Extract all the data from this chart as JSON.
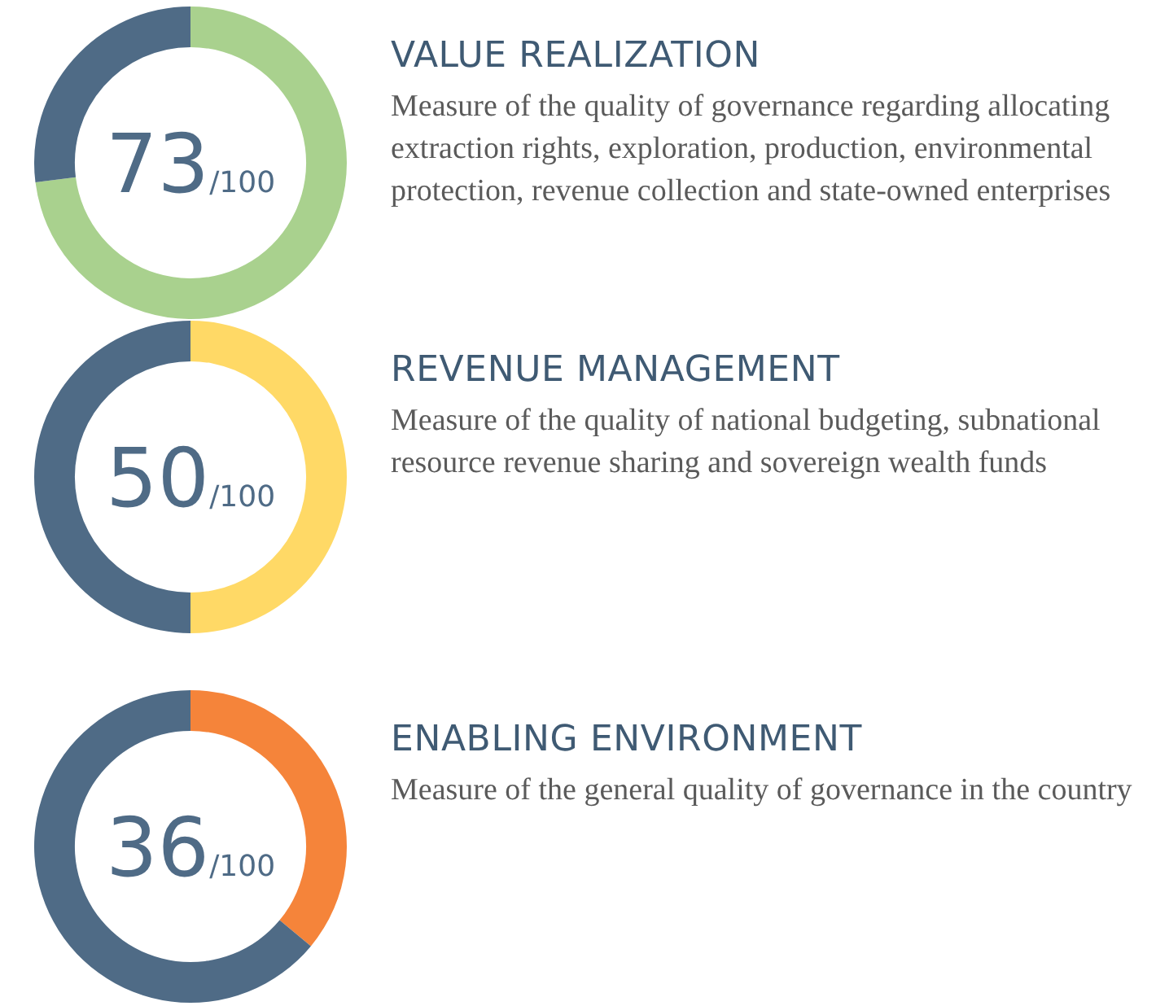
{
  "chart_data": [
    {
      "type": "donut",
      "title": "VALUE REALIZATION",
      "subtitle": "Measure of the quality of governance regarding allocating extraction rights, exploration, production, environmental protection, revenue collection and state-owned enterprises",
      "categories": [
        null,
        null
      ],
      "values": [
        73,
        27
      ],
      "colors": [
        "#a9d18e",
        "#4f6b86"
      ],
      "annotations": [
        "73",
        "/100"
      ],
      "legend": false
    },
    {
      "type": "donut",
      "title": "REVENUE MANAGEMENT",
      "subtitle": "Measure of the quality of national budgeting, subnational resource revenue sharing and sovereign wealth funds",
      "categories": [
        null,
        null
      ],
      "values": [
        50,
        50
      ],
      "colors": [
        "#ffd966",
        "#4f6b86"
      ],
      "annotations": [
        "50",
        "/100"
      ],
      "legend": false
    },
    {
      "type": "donut",
      "title": "ENABLING ENVIRONMENT",
      "subtitle": "Measure of the general quality of governance in the country",
      "categories": [
        null,
        null
      ],
      "values": [
        36,
        64
      ],
      "colors": [
        "#f5843a",
        "#4f6b86"
      ],
      "annotations": [
        "36",
        "/100"
      ],
      "legend": false
    }
  ]
}
